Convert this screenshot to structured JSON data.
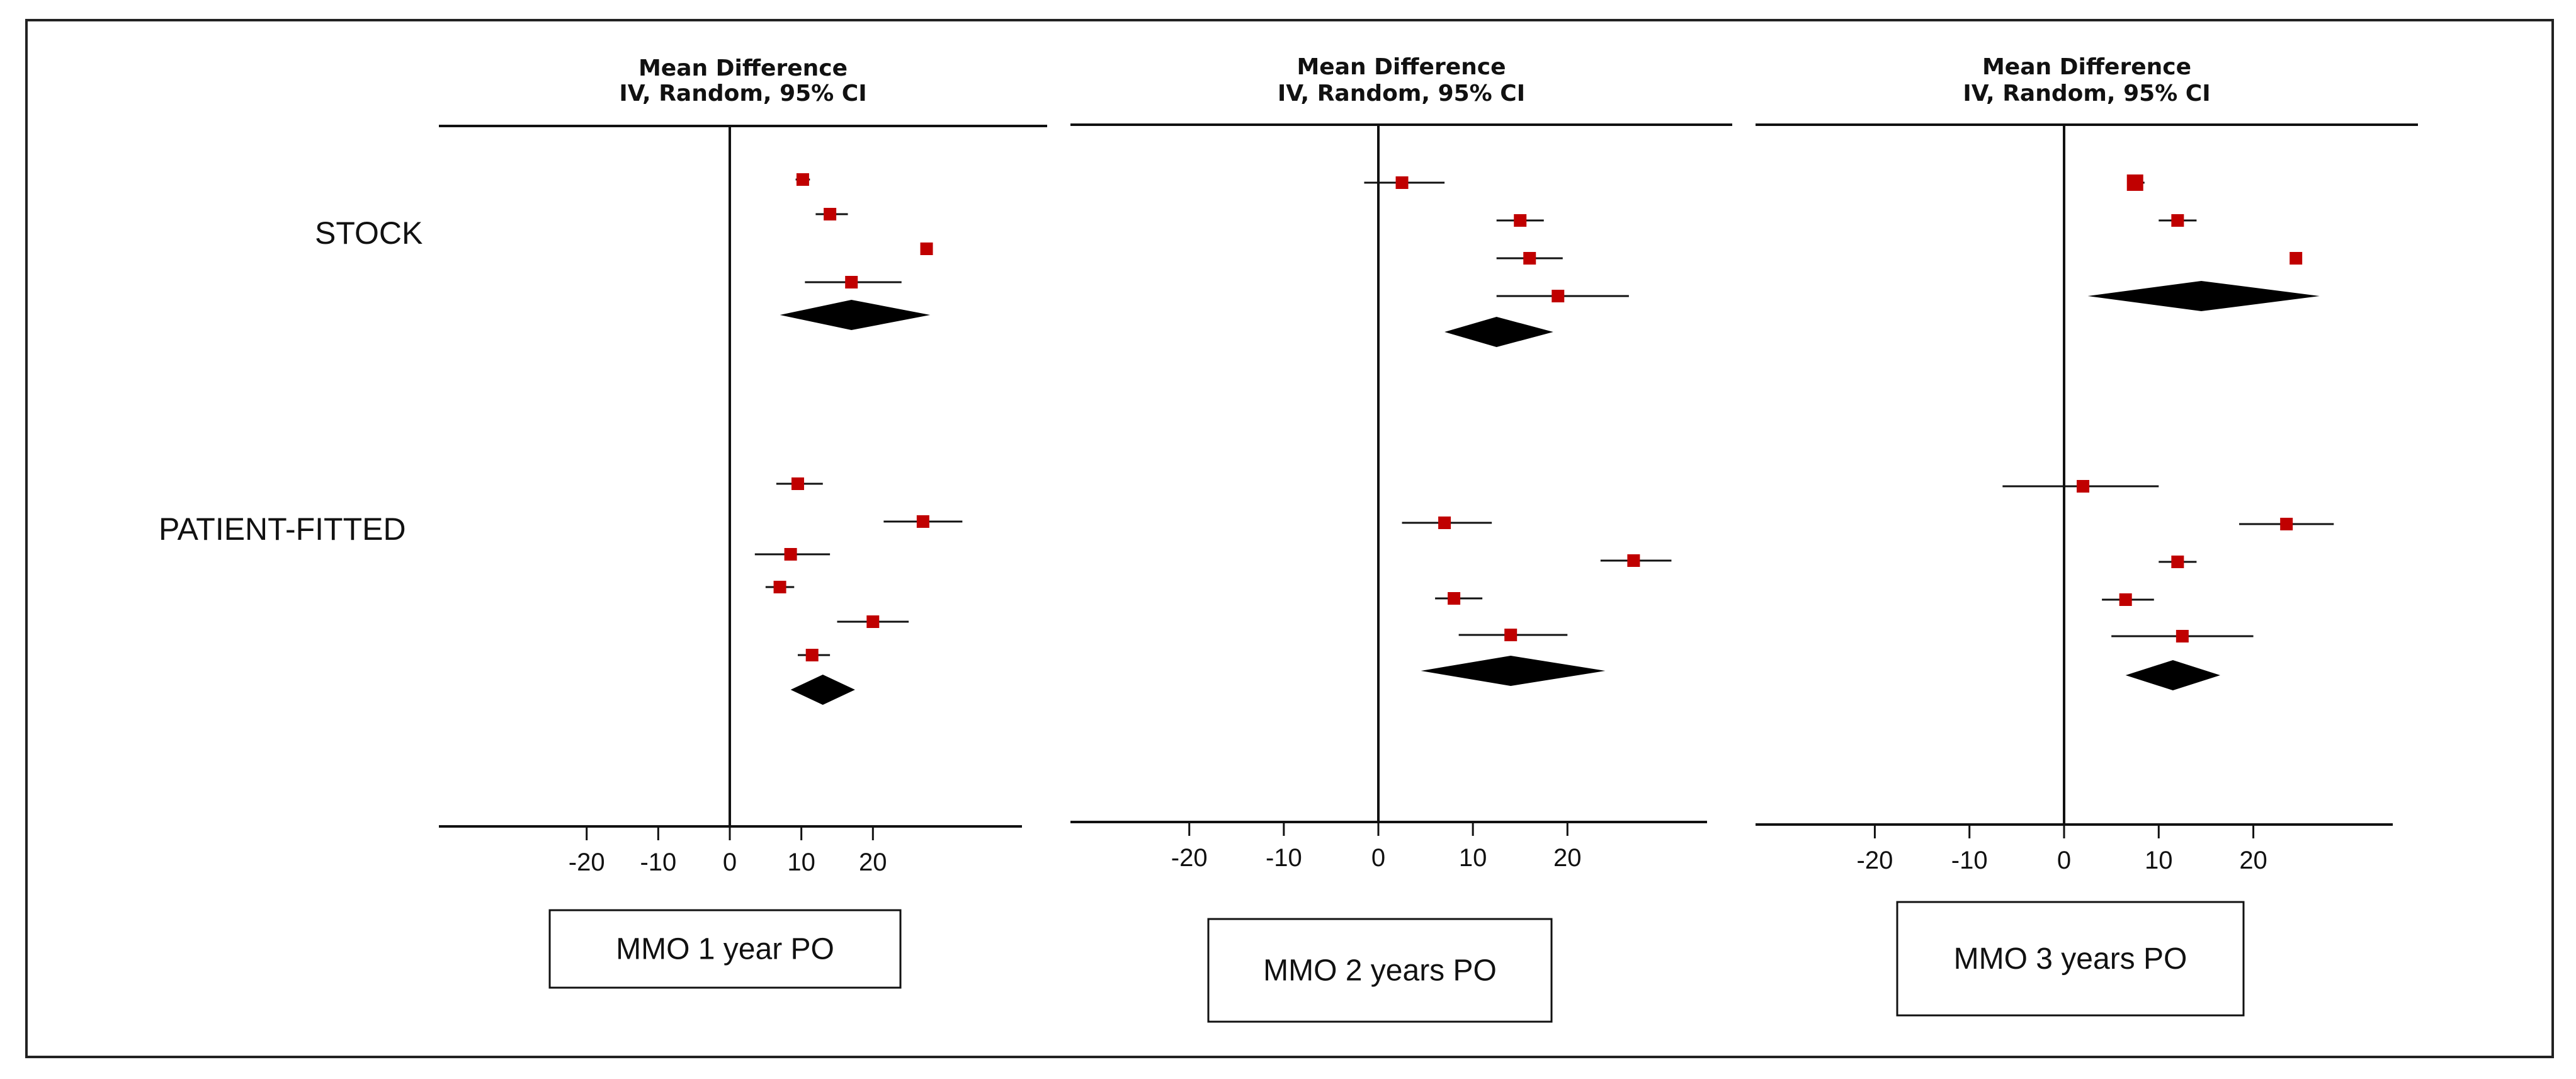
{
  "figure": {
    "group_labels": [
      "STOCK",
      "PATIENT-FITTED"
    ],
    "colors": {
      "point": "#c00000",
      "line": "#111111",
      "diamond": "#000000"
    }
  },
  "chart_data": [
    {
      "type": "forest",
      "header": [
        "Mean Difference",
        "IV, Random, 95% CI"
      ],
      "x_ticks": [
        -20,
        -10,
        0,
        10,
        20
      ],
      "xlim": [
        -42,
        43
      ],
      "label": "MMO 1 year PO",
      "groups": [
        {
          "name": "STOCK",
          "studies": [
            {
              "est": 10.2,
              "lo": 9.2,
              "hi": 11.2
            },
            {
              "est": 14.0,
              "lo": 12.0,
              "hi": 16.5
            },
            {
              "est": 27.5,
              "lo": 27.5,
              "hi": 27.5
            },
            {
              "est": 17.0,
              "lo": 10.5,
              "hi": 24.0
            }
          ],
          "pooled": {
            "est": 17.0,
            "lo": 7.0,
            "hi": 28.0
          }
        },
        {
          "name": "PATIENT-FITTED",
          "studies": [
            {
              "est": 9.5,
              "lo": 6.5,
              "hi": 13.0
            },
            {
              "est": 27.0,
              "lo": 21.5,
              "hi": 32.5
            },
            {
              "est": 8.5,
              "lo": 3.5,
              "hi": 14.0
            },
            {
              "est": 7.0,
              "lo": 5.0,
              "hi": 9.0
            },
            {
              "est": 20.0,
              "lo": 15.0,
              "hi": 25.0
            },
            {
              "est": 11.5,
              "lo": 9.5,
              "hi": 14.0
            }
          ],
          "pooled": {
            "est": 13.0,
            "lo": 8.5,
            "hi": 17.5
          }
        }
      ]
    },
    {
      "type": "forest",
      "header": [
        "Mean Difference",
        "IV, Random, 95% CI"
      ],
      "x_ticks": [
        -20,
        -10,
        0,
        10,
        20
      ],
      "xlim": [
        -34,
        36
      ],
      "label": "MMO 2 years PO",
      "groups": [
        {
          "name": "STOCK",
          "studies": [
            {
              "est": 2.5,
              "lo": -1.5,
              "hi": 7.0
            },
            {
              "est": 15.0,
              "lo": 12.5,
              "hi": 17.5
            },
            {
              "est": 16.0,
              "lo": 12.5,
              "hi": 19.5
            },
            {
              "est": 19.0,
              "lo": 12.5,
              "hi": 26.5
            }
          ],
          "pooled": {
            "est": 12.5,
            "lo": 7.0,
            "hi": 18.5
          }
        },
        {
          "name": "PATIENT-FITTED",
          "studies": [
            {
              "est": 7.0,
              "lo": 2.5,
              "hi": 12.0
            },
            {
              "est": 27.0,
              "lo": 23.5,
              "hi": 31.0
            },
            {
              "est": 8.0,
              "lo": 6.0,
              "hi": 11.0
            },
            {
              "est": 14.0,
              "lo": 8.5,
              "hi": 20.0
            }
          ],
          "pooled": {
            "est": 14.0,
            "lo": 4.5,
            "hi": 24.0
          }
        }
      ]
    },
    {
      "type": "forest",
      "header": [
        "Mean Difference",
        "IV, Random, 95% CI"
      ],
      "x_ticks": [
        -20,
        -10,
        0,
        10,
        20
      ],
      "xlim": [
        -34,
        36
      ],
      "label": "MMO 3 years PO",
      "groups": [
        {
          "name": "STOCK",
          "studies": [
            {
              "est": 7.5,
              "lo": 7.0,
              "hi": 8.5
            },
            {
              "est": 12.0,
              "lo": 10.0,
              "hi": 14.0
            },
            {
              "est": 24.5,
              "lo": 24.0,
              "hi": 25.0
            }
          ],
          "pooled": {
            "est": 14.5,
            "lo": 2.5,
            "hi": 27.0
          }
        },
        {
          "name": "PATIENT-FITTED",
          "studies": [
            {
              "est": 2.0,
              "lo": -6.5,
              "hi": 10.0
            },
            {
              "est": 23.5,
              "lo": 18.5,
              "hi": 28.5
            },
            {
              "est": 12.0,
              "lo": 10.0,
              "hi": 14.0
            },
            {
              "est": 6.5,
              "lo": 4.0,
              "hi": 9.5
            },
            {
              "est": 12.5,
              "lo": 5.0,
              "hi": 20.0
            }
          ],
          "pooled": {
            "est": 11.5,
            "lo": 6.5,
            "hi": 16.5
          }
        }
      ]
    }
  ]
}
